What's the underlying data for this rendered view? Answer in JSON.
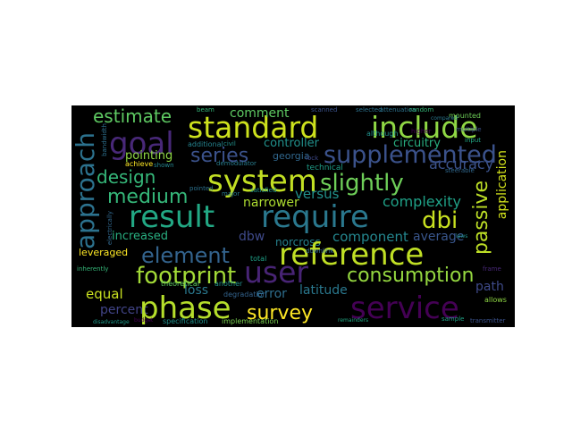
{
  "word_cloud": {
    "background": "#000000",
    "words": [
      {
        "id": "standard",
        "text": "standard",
        "color": "#cde11d"
      },
      {
        "id": "include",
        "text": "include",
        "color": "#8fd744"
      },
      {
        "id": "goal",
        "text": "goal",
        "color": "#482878"
      },
      {
        "id": "estimate",
        "text": "estimate",
        "color": "#5ec962"
      },
      {
        "id": "comment",
        "text": "comment",
        "color": "#5ec962"
      },
      {
        "id": "approach",
        "text": "approach",
        "color": "#2c728e"
      },
      {
        "id": "supplemented",
        "text": "supplemented",
        "color": "#3b528b"
      },
      {
        "id": "series",
        "text": "series",
        "color": "#3b528b"
      },
      {
        "id": "controller",
        "text": "controller",
        "color": "#21918c"
      },
      {
        "id": "circuitry",
        "text": "circuitry",
        "color": "#28ae80"
      },
      {
        "id": "georgia",
        "text": "georgia",
        "color": "#31688e"
      },
      {
        "id": "pointing",
        "text": "pointing",
        "color": "#8fd744"
      },
      {
        "id": "accuracy",
        "text": "accuracy",
        "color": "#3b528b"
      },
      {
        "id": "design",
        "text": "design",
        "color": "#35b779"
      },
      {
        "id": "system",
        "text": "system",
        "color": "#c2df23"
      },
      {
        "id": "slightly",
        "text": "slightly",
        "color": "#6ece58"
      },
      {
        "id": "medium",
        "text": "medium",
        "color": "#35b779"
      },
      {
        "id": "versus",
        "text": "versus",
        "color": "#21918c"
      },
      {
        "id": "complexity",
        "text": "complexity",
        "color": "#1fa187"
      },
      {
        "id": "passive",
        "text": "passive",
        "color": "#bddf26"
      },
      {
        "id": "application",
        "text": "application",
        "color": "#d2e21b"
      },
      {
        "id": "narrower",
        "text": "narrower",
        "color": "#addc30"
      },
      {
        "id": "result",
        "text": "result",
        "color": "#22a884"
      },
      {
        "id": "require",
        "text": "require",
        "color": "#2a788e"
      },
      {
        "id": "dbi",
        "text": "dbi",
        "color": "#c8e020"
      },
      {
        "id": "increased",
        "text": "increased",
        "color": "#28ae80"
      },
      {
        "id": "dbw",
        "text": "dbw",
        "color": "#3e4989"
      },
      {
        "id": "norcross",
        "text": "norcross",
        "color": "#26828e"
      },
      {
        "id": "component",
        "text": "component",
        "color": "#24868e"
      },
      {
        "id": "average",
        "text": "average",
        "color": "#39568c"
      },
      {
        "id": "element",
        "text": "element",
        "color": "#33638d"
      },
      {
        "id": "reference",
        "text": "reference",
        "color": "#c0df25"
      },
      {
        "id": "leveraged",
        "text": "leveraged",
        "color": "#fde725"
      },
      {
        "id": "footprint",
        "text": "footprint",
        "color": "#a2da37"
      },
      {
        "id": "user",
        "text": "user",
        "color": "#482475"
      },
      {
        "id": "consumption",
        "text": "consumption",
        "color": "#95d840"
      },
      {
        "id": "equal",
        "text": "equal",
        "color": "#c8e020"
      },
      {
        "id": "loss",
        "text": "loss",
        "color": "#2a788e"
      },
      {
        "id": "error",
        "text": "error",
        "color": "#2e6e8e"
      },
      {
        "id": "latitude",
        "text": "latitude",
        "color": "#2a788e"
      },
      {
        "id": "path",
        "text": "path",
        "color": "#3e4a89"
      },
      {
        "id": "percent",
        "text": "percent",
        "color": "#414487"
      },
      {
        "id": "phase",
        "text": "phase",
        "color": "#b5de2b"
      },
      {
        "id": "survey",
        "text": "survey",
        "color": "#fde725"
      },
      {
        "id": "service",
        "text": "service",
        "color": "#440154"
      },
      {
        "id": "beam",
        "text": "beam",
        "color": "#35b779"
      },
      {
        "id": "attenuation",
        "text": "attenuation",
        "color": "#2c728e"
      },
      {
        "id": "mounted",
        "text": "mounted",
        "color": "#6ece58"
      },
      {
        "id": "achieve",
        "text": "achieve",
        "color": "#fde725"
      },
      {
        "id": "additional",
        "text": "additional",
        "color": "#25838e"
      },
      {
        "id": "although",
        "text": "although",
        "color": "#21918c"
      },
      {
        "id": "input",
        "text": "input",
        "color": "#22a884"
      },
      {
        "id": "technical",
        "text": "technical",
        "color": "#1f9e89"
      },
      {
        "id": "demodulator",
        "text": "demodulator",
        "color": "#287d8e"
      },
      {
        "id": "shown",
        "text": "shown",
        "color": "#25858e"
      },
      {
        "id": "satisfied",
        "text": "satisfied",
        "color": "#20928c"
      },
      {
        "id": "theoretical",
        "text": "theoretical",
        "color": "#5ec962"
      },
      {
        "id": "pointed",
        "text": "pointed",
        "color": "#2c728e"
      },
      {
        "id": "another",
        "text": "another",
        "color": "#21918c"
      },
      {
        "id": "total",
        "text": "total",
        "color": "#1fa187"
      },
      {
        "id": "higher",
        "text": "higher",
        "color": "#440154"
      },
      {
        "id": "multiple",
        "text": "multiple",
        "color": "#3b528b"
      },
      {
        "id": "allows",
        "text": "allows",
        "color": "#8fd744"
      },
      {
        "id": "degradation",
        "text": "degradation",
        "color": "#33638d"
      },
      {
        "id": "implementation",
        "text": "implementation",
        "color": "#7ad151"
      },
      {
        "id": "specification",
        "text": "specification",
        "color": "#21918c"
      },
      {
        "id": "inherently",
        "text": "inherently",
        "color": "#35b779"
      },
      {
        "id": "compared",
        "text": "compared",
        "color": "#2a788e"
      },
      {
        "id": "steerable",
        "text": "steerable",
        "color": "#31688e"
      },
      {
        "id": "sample",
        "text": "sample",
        "color": "#20a386"
      },
      {
        "id": "lock",
        "text": "lock",
        "color": "#3e4989"
      },
      {
        "id": "downlink",
        "text": "downlink",
        "color": "#31688e"
      },
      {
        "id": "major",
        "text": "major",
        "color": "#287c8e"
      },
      {
        "id": "civil",
        "text": "civil",
        "color": "#21918c"
      },
      {
        "id": "transmitter",
        "text": "transmitter",
        "color": "#3b528b"
      },
      {
        "id": "disadvantage",
        "text": "disadvantage",
        "color": "#1f9a8a"
      },
      {
        "id": "frame",
        "text": "frame",
        "color": "#482878"
      },
      {
        "id": "scanned",
        "text": "scanned",
        "color": "#3b528b"
      },
      {
        "id": "selected",
        "text": "selected",
        "color": "#2c728e"
      },
      {
        "id": "random",
        "text": "random",
        "color": "#35b779"
      },
      {
        "id": "laws",
        "text": "laws",
        "color": "#21918c"
      },
      {
        "id": "budget",
        "text": "budget",
        "color": "#440154"
      },
      {
        "id": "remainders",
        "text": "remainders",
        "color": "#22a884"
      },
      {
        "id": "electrically",
        "text": "electrically",
        "color": "#31688e"
      },
      {
        "id": "bandwidth",
        "text": "bandwidth",
        "color": "#2d708e"
      }
    ]
  }
}
